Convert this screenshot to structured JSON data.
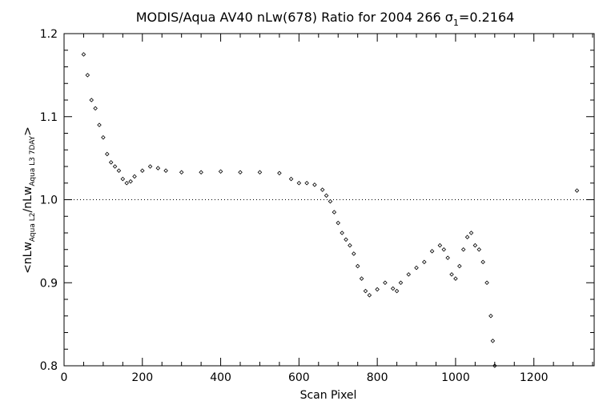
{
  "chart_data": {
    "type": "scatter",
    "title_main": "MODIS/Aqua AV40 nLw(678) Ratio for 2004 266 σ",
    "title_sub": "1",
    "title_tail": "=0.2164",
    "xlabel": "Scan Pixel",
    "ylabel_parts": [
      "<nLw",
      "Aqua L2",
      "/nLw",
      "Aqua L3 7DAY",
      ">"
    ],
    "xlim": [
      0,
      1354
    ],
    "ylim": [
      0.8,
      1.2
    ],
    "x_ticks": [
      0,
      200,
      400,
      600,
      800,
      1000,
      1200
    ],
    "x_tick_labels": [
      "0",
      "200",
      "400",
      "600",
      "800",
      "1000",
      "1200"
    ],
    "y_ticks": [
      0.8,
      0.9,
      1.0,
      1.1,
      1.2
    ],
    "y_tick_labels": [
      "0.8",
      "0.9",
      "1.0",
      "1.1",
      "1.2"
    ],
    "reference_line": 1.0,
    "marker": "diamond",
    "color": "#000000",
    "trend_points": [
      [
        50,
        1.175
      ],
      [
        60,
        1.15
      ],
      [
        70,
        1.12
      ],
      [
        80,
        1.11
      ],
      [
        90,
        1.09
      ],
      [
        100,
        1.075
      ],
      [
        110,
        1.055
      ],
      [
        120,
        1.045
      ],
      [
        130,
        1.04
      ],
      [
        140,
        1.035
      ],
      [
        150,
        1.025
      ],
      [
        160,
        1.02
      ],
      [
        170,
        1.022
      ],
      [
        180,
        1.028
      ],
      [
        200,
        1.035
      ],
      [
        220,
        1.04
      ],
      [
        240,
        1.038
      ],
      [
        260,
        1.035
      ],
      [
        300,
        1.033
      ],
      [
        350,
        1.033
      ],
      [
        400,
        1.034
      ],
      [
        450,
        1.033
      ],
      [
        500,
        1.033
      ],
      [
        550,
        1.032
      ],
      [
        580,
        1.025
      ],
      [
        600,
        1.02
      ],
      [
        620,
        1.02
      ],
      [
        640,
        1.018
      ],
      [
        660,
        1.012
      ],
      [
        670,
        1.005
      ],
      [
        680,
        0.998
      ],
      [
        690,
        0.985
      ],
      [
        700,
        0.972
      ],
      [
        710,
        0.96
      ],
      [
        720,
        0.952
      ],
      [
        730,
        0.945
      ],
      [
        740,
        0.935
      ],
      [
        750,
        0.92
      ],
      [
        760,
        0.905
      ],
      [
        770,
        0.89
      ],
      [
        780,
        0.885
      ],
      [
        800,
        0.892
      ],
      [
        820,
        0.9
      ],
      [
        840,
        0.893
      ],
      [
        850,
        0.89
      ],
      [
        860,
        0.9
      ],
      [
        880,
        0.91
      ],
      [
        900,
        0.918
      ],
      [
        920,
        0.925
      ],
      [
        940,
        0.938
      ],
      [
        960,
        0.945
      ],
      [
        970,
        0.94
      ],
      [
        980,
        0.93
      ],
      [
        990,
        0.91
      ],
      [
        1000,
        0.905
      ],
      [
        1010,
        0.92
      ],
      [
        1020,
        0.94
      ],
      [
        1030,
        0.955
      ],
      [
        1040,
        0.96
      ],
      [
        1050,
        0.945
      ],
      [
        1060,
        0.94
      ],
      [
        1070,
        0.925
      ],
      [
        1080,
        0.9
      ],
      [
        1090,
        0.86
      ],
      [
        1095,
        0.83
      ],
      [
        1100,
        0.8
      ]
    ],
    "extra_points": [
      [
        1310,
        1.011
      ]
    ]
  }
}
